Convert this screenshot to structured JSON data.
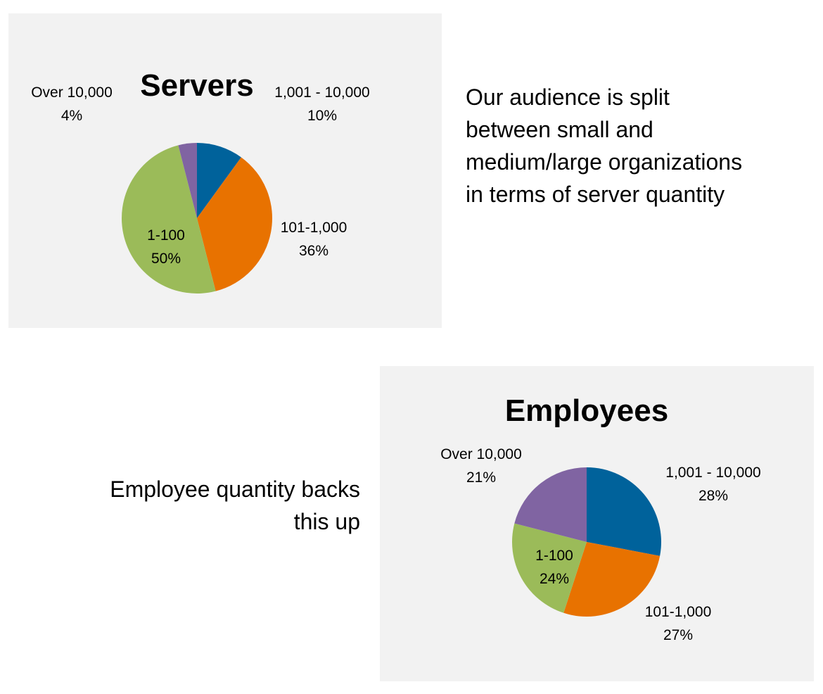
{
  "chart_data": [
    {
      "type": "pie",
      "title": "Servers",
      "slices": [
        {
          "category": "1,001 - 10,000",
          "value": 10,
          "value_label": "10%",
          "color": "#00629b"
        },
        {
          "category": "101-1,000",
          "value": 36,
          "value_label": "36%",
          "color": "#e87200"
        },
        {
          "category": "1-100",
          "value": 50,
          "value_label": "50%",
          "color": "#9bbb59"
        },
        {
          "category": "Over 10,000",
          "value": 4,
          "value_label": "4%",
          "color": "#8064a2"
        }
      ],
      "start_angle_deg": 0,
      "direction": "clockwise",
      "legend": "none",
      "labels": "outside-and-inside"
    },
    {
      "type": "pie",
      "title": "Employees",
      "slices": [
        {
          "category": "1,001 - 10,000",
          "value": 28,
          "value_label": "28%",
          "color": "#00629b"
        },
        {
          "category": "101-1,000",
          "value": 27,
          "value_label": "27%",
          "color": "#e87200"
        },
        {
          "category": "1-100",
          "value": 24,
          "value_label": "24%",
          "color": "#9bbb59"
        },
        {
          "category": "Over 10,000",
          "value": 21,
          "value_label": "21%",
          "color": "#8064a2"
        }
      ],
      "start_angle_deg": 0,
      "direction": "clockwise",
      "legend": "none",
      "labels": "outside-and-inside"
    }
  ],
  "captions": {
    "servers": "Our audience is split between small and medium/large organizations in terms of server quantity",
    "employees": "Employee quantity backs this up"
  },
  "colors": {
    "panel_background": "#f2f2f2",
    "page_background": "#ffffff"
  }
}
